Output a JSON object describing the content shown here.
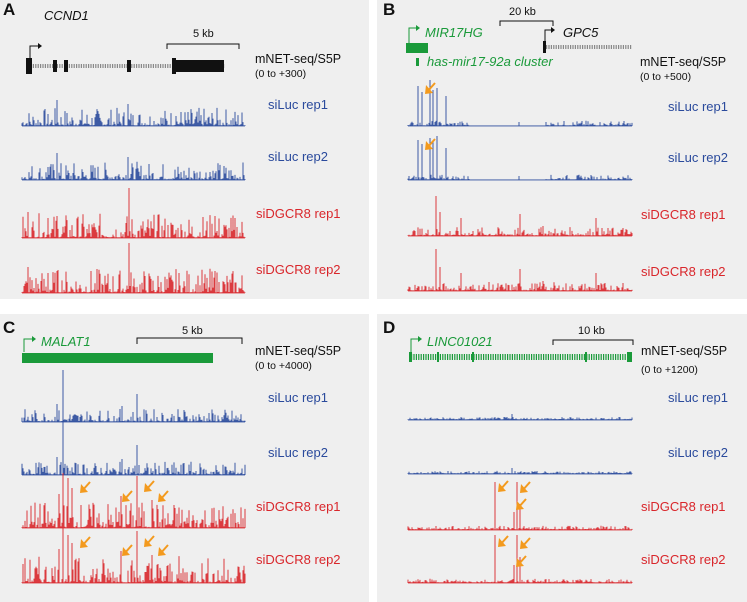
{
  "colors": {
    "blue": "#2a4a9c",
    "red": "#d9262b",
    "green": "#1a9a3a",
    "arrow": "#f39a1e",
    "panel_bg": "#efefef"
  },
  "panels": [
    {
      "id": "A",
      "label": "A",
      "genes": [
        "CCND1"
      ],
      "scale": "5 kb",
      "assay": "mNET-seq/S5P",
      "range": "(0 to +300)",
      "tracks": [
        "siLuc rep1",
        "siLuc rep2",
        "siDGCR8 rep1",
        "siDGCR8 rep2"
      ]
    },
    {
      "id": "B",
      "label": "B",
      "genes": [
        "MIR17HG",
        "GPC5"
      ],
      "cluster": "has-mir17-92a cluster",
      "scale": "20 kb",
      "assay": "mNET-seq/S5P",
      "range": "(0 to +500)",
      "tracks": [
        "siLuc rep1",
        "siLuc rep2",
        "siDGCR8 rep1",
        "siDGCR8 rep2"
      ]
    },
    {
      "id": "C",
      "label": "C",
      "genes": [
        "MALAT1"
      ],
      "scale": "5 kb",
      "assay": "mNET-seq/S5P",
      "range": "(0 to +4000)",
      "tracks": [
        "siLuc rep1",
        "siLuc rep2",
        "siDGCR8 rep1",
        "siDGCR8 rep2"
      ]
    },
    {
      "id": "D",
      "label": "D",
      "genes": [
        "LINC01021"
      ],
      "scale": "10 kb",
      "assay": "mNET-seq/S5P",
      "range": "(0 to +1200)",
      "tracks": [
        "siLuc rep1",
        "siLuc rep2",
        "siDGCR8 rep1",
        "siDGCR8 rep2"
      ]
    }
  ]
}
